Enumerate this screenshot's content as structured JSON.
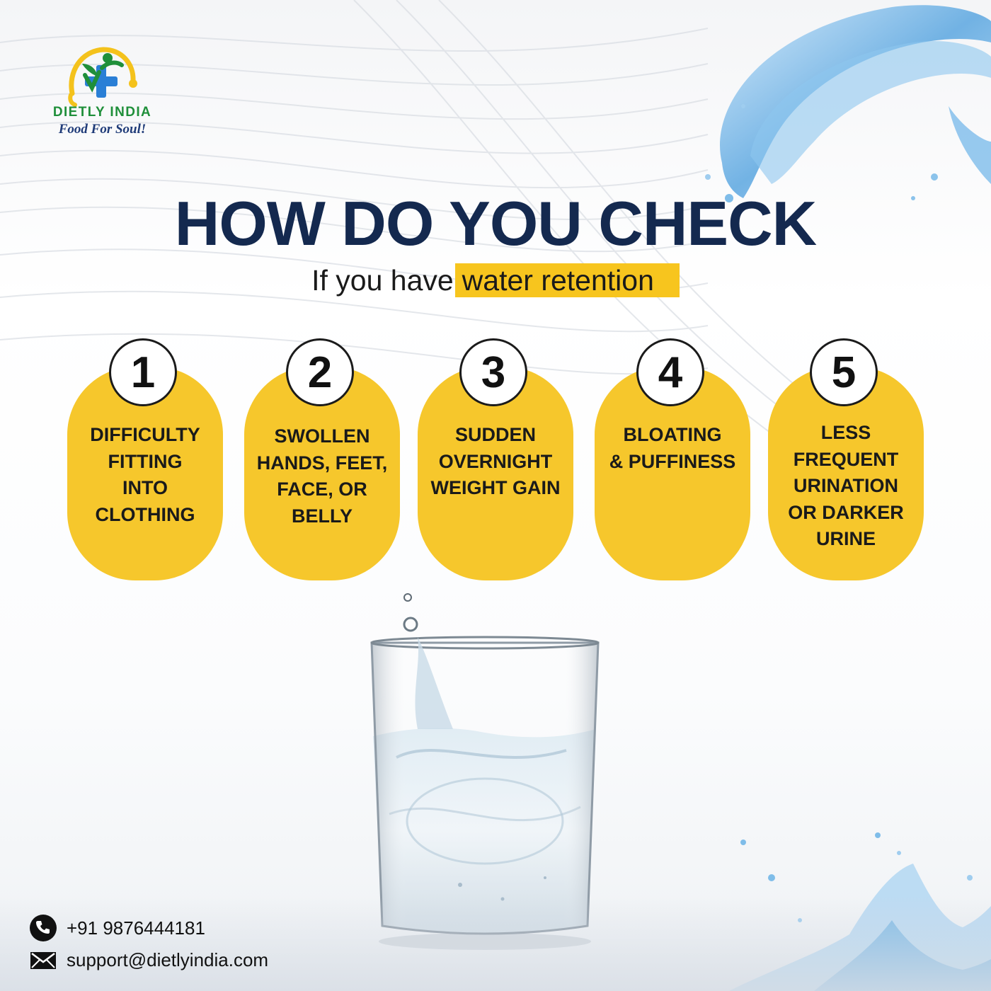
{
  "brand": {
    "name": "DIETLY INDIA",
    "tagline": "Food For Soul!",
    "colors": {
      "green": "#1f8f3a",
      "blue": "#2a7fd6",
      "yellow": "#f4c21c"
    }
  },
  "headline": "HOW DO YOU CHECK",
  "subline": {
    "prefix": "If you have",
    "highlight": "water retention"
  },
  "cards": [
    {
      "number": "1",
      "lines": [
        "DIFFICULTY",
        "FITTING",
        "INTO",
        "CLOTHING"
      ]
    },
    {
      "number": "2",
      "lines": [
        "SWOLLEN",
        "HANDS, FEET,",
        "FACE, OR",
        "BELLY"
      ]
    },
    {
      "number": "3",
      "lines": [
        "SUDDEN",
        "OVERNIGHT",
        "WEIGHT GAIN"
      ]
    },
    {
      "number": "4",
      "lines": [
        "BLOATING",
        "& PUFFINESS"
      ]
    },
    {
      "number": "5",
      "lines": [
        "LESS",
        "FREQUENT",
        "URINATION",
        "OR DARKER",
        "URINE"
      ]
    }
  ],
  "contact": {
    "phone": "+91 9876444181",
    "email": "support@dietlyindia.com",
    "phone_icon": "phone-icon",
    "email_icon": "envelope-icon"
  },
  "colors": {
    "headline": "#14294f",
    "card_fill": "#f6c72c",
    "highlight": "#f7c51e"
  }
}
